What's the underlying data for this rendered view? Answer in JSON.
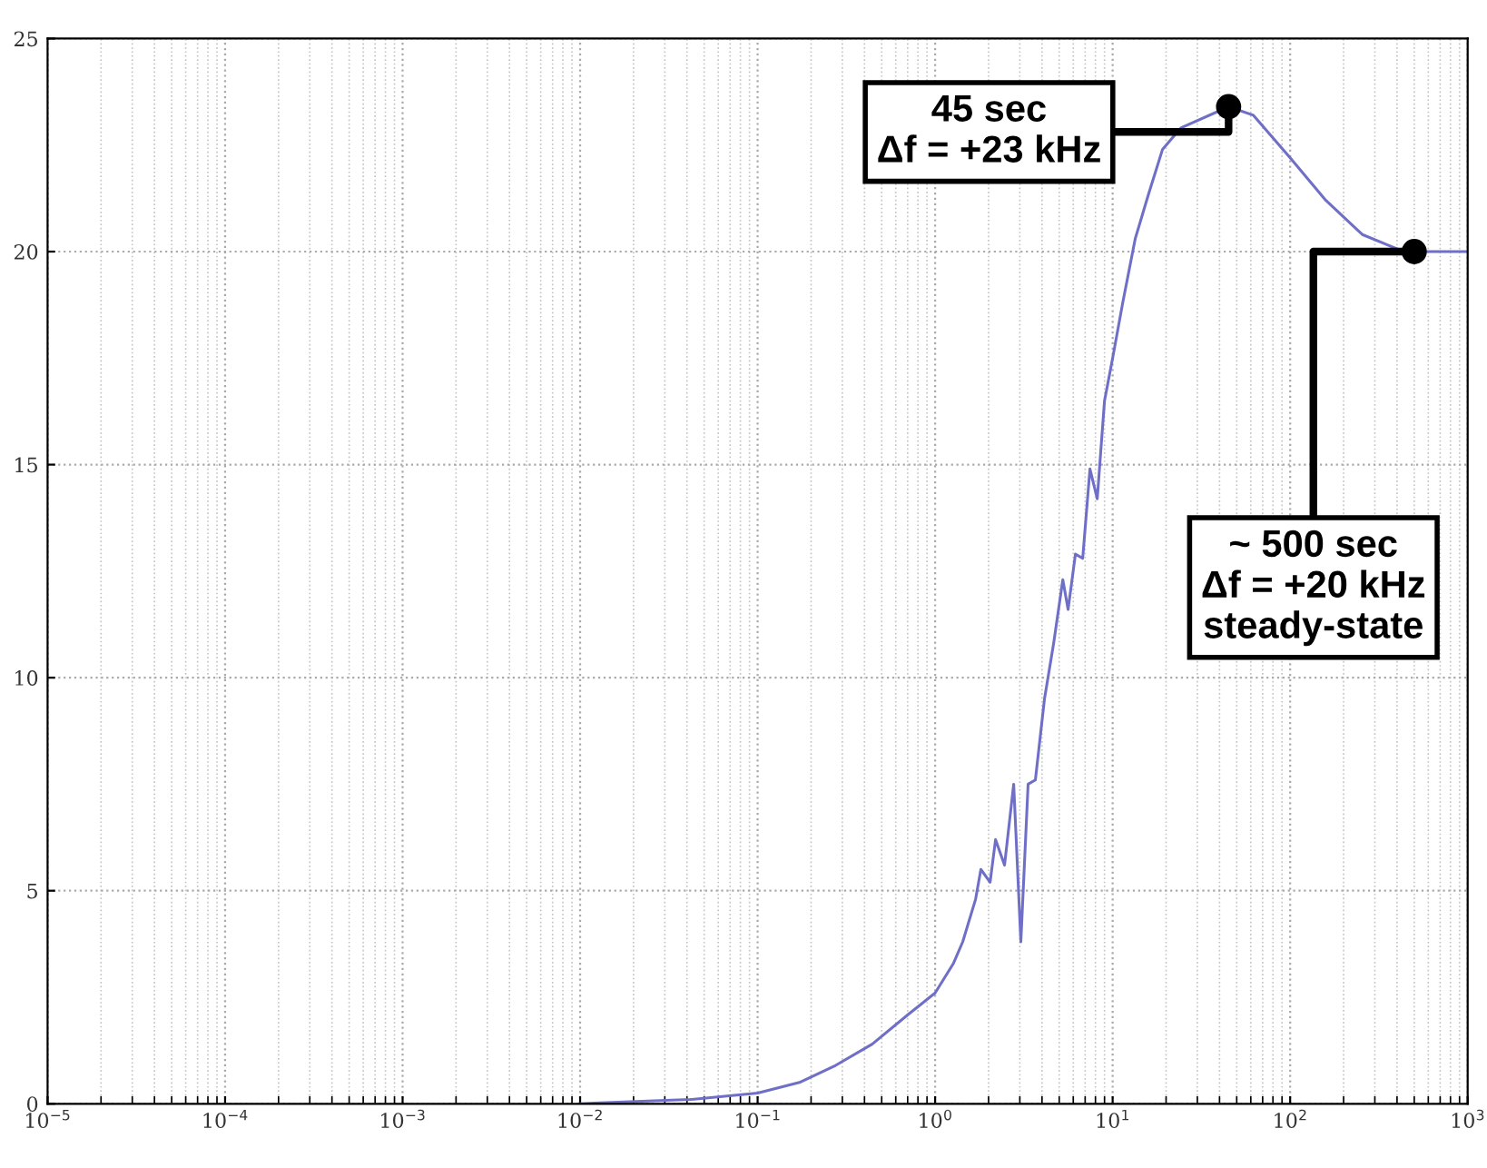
{
  "chart_data": {
    "type": "line",
    "log": "x",
    "grid": true,
    "marker": "none",
    "line_style": "solid",
    "xlim": [
      1e-05,
      1000
    ],
    "ylim": [
      0,
      25
    ],
    "xticks": [
      {
        "value": 1e-05,
        "label": "10$^{−5}$"
      },
      {
        "value": 0.0001,
        "label": "10$^{−4}$"
      },
      {
        "value": 0.001,
        "label": "10$^{−3}$"
      },
      {
        "value": 0.01,
        "label": "10$^{−2}$"
      },
      {
        "value": 0.1,
        "label": "10$^{−1}$"
      },
      {
        "value": 1,
        "label": "10$^{0}$"
      },
      {
        "value": 10,
        "label": "10$^{1}$"
      },
      {
        "value": 100,
        "label": "10$^{2}$"
      },
      {
        "value": 1000,
        "label": "10$^{3}$"
      }
    ],
    "yticks": [
      0,
      5,
      10,
      15,
      20,
      25
    ],
    "series": [
      {
        "color": "#6f6fc8",
        "x": [
          0.01,
          0.0129,
          0.0418,
          0.1,
          0.172,
          0.275,
          0.442,
          0.707,
          1,
          1.27,
          1.43,
          1.69,
          1.81,
          2.04,
          2.19,
          2.46,
          2.77,
          3.04,
          3.34,
          3.67,
          4.13,
          4.65,
          5.24,
          5.61,
          6.17,
          6.78,
          7.45,
          8.19,
          9.0,
          10,
          11.4,
          13.4,
          15.8,
          19.1,
          24.2,
          45,
          62.1,
          100,
          159,
          255,
          408,
          500,
          1000
        ],
        "values": [
          0,
          0.02,
          0.1,
          0.25,
          0.5,
          0.9,
          1.4,
          2.1,
          2.6,
          3.3,
          3.8,
          4.8,
          5.5,
          5.2,
          6.2,
          5.6,
          7.5,
          3.8,
          7.5,
          7.6,
          9.5,
          10.8,
          12.3,
          11.6,
          12.9,
          12.8,
          14.9,
          14.2,
          16.5,
          17.5,
          18.8,
          20.3,
          21.3,
          22.4,
          22.9,
          23.4,
          23.2,
          22.2,
          21.2,
          20.4,
          20.05,
          20.0,
          20.0
        ]
      }
    ],
    "annotations": [
      {
        "text": "45 sec\nΔf = +23 kHz",
        "x": 45,
        "y": 23.4
      },
      {
        "text": "~ 500 sec\nΔf = +20 kHz\nsteady-state",
        "x": 500,
        "y": 20
      }
    ]
  }
}
